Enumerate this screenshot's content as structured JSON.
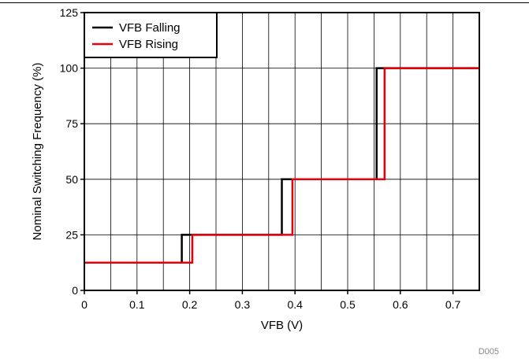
{
  "chart_data": {
    "type": "line",
    "title": "",
    "xlabel": "VFB (V)",
    "ylabel": "Nominal Switching Frequency (%)",
    "xlim": [
      0,
      0.75
    ],
    "ylim": [
      0,
      125
    ],
    "x_ticks": [
      0,
      0.1,
      0.2,
      0.3,
      0.4,
      0.5,
      0.6,
      0.7
    ],
    "x_tick_labels": [
      "0",
      "0.1",
      "0.2",
      "0.3",
      "0.4",
      "0.5",
      "0.6",
      "0.7"
    ],
    "y_ticks": [
      0,
      25,
      50,
      75,
      100,
      125
    ],
    "y_tick_labels": [
      "0",
      "25",
      "50",
      "75",
      "100",
      "125"
    ],
    "x_minor_step": 0.05,
    "y_grid_step": 25,
    "grid": true,
    "legend_position": "top-left",
    "series": [
      {
        "name": "VFB Falling",
        "color": "#000000",
        "x": [
          0,
          0.185,
          0.185,
          0.375,
          0.375,
          0.555,
          0.555,
          0.75
        ],
        "y": [
          12.5,
          12.5,
          25,
          25,
          50,
          50,
          100,
          100
        ]
      },
      {
        "name": "VFB Rising",
        "color": "#e8000b",
        "x": [
          0,
          0.205,
          0.205,
          0.395,
          0.395,
          0.57,
          0.57,
          0.75
        ],
        "y": [
          12.5,
          12.5,
          25,
          25,
          50,
          50,
          100,
          100
        ]
      }
    ],
    "figure_code": "D005"
  }
}
